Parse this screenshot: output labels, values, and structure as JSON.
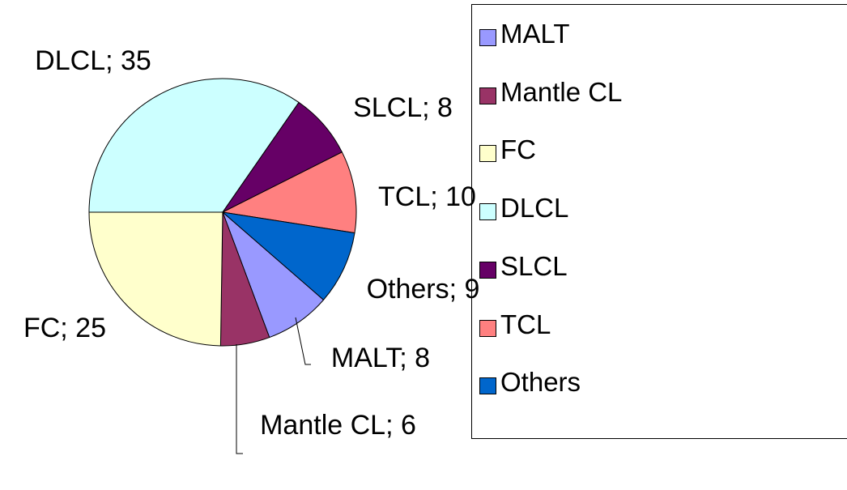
{
  "chart_data": {
    "type": "pie",
    "categories": [
      "MALT",
      "Mantle CL",
      "FC",
      "DLCL",
      "SLCL",
      "TCL",
      "Others"
    ],
    "values": [
      8,
      6,
      25,
      35,
      8,
      10,
      9
    ],
    "value_labels": [
      "MALT; 8",
      "Mantle CL; 6",
      "FC; 25",
      "DLCL; 35",
      "SLCL; 8",
      "TCL; 10",
      "Others; 9"
    ],
    "colors": [
      "#9999ff",
      "#993366",
      "#ffffcc",
      "#ccffff",
      "#660066",
      "#ff8080",
      "#0066cc"
    ],
    "legend": "right"
  }
}
